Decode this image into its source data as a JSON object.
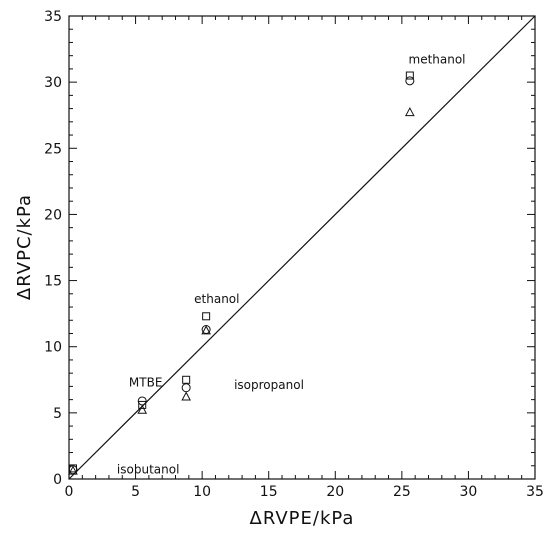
{
  "chart_data": {
    "type": "scatter",
    "title": "",
    "xlabel": "ΔRVPE/kPa",
    "ylabel": "ΔRVPC/kPa",
    "xlim": [
      0,
      35
    ],
    "ylim": [
      0,
      35
    ],
    "x_ticks": [
      0,
      5,
      10,
      15,
      20,
      25,
      30,
      35
    ],
    "y_ticks": [
      0,
      5,
      10,
      15,
      20,
      25,
      30,
      35
    ],
    "grid": false,
    "legend": "none",
    "reference_line": {
      "from": [
        0,
        0
      ],
      "to": [
        35,
        35
      ]
    },
    "series": [
      {
        "marker": "square",
        "points": [
          {
            "x": 0.3,
            "y": 0.8
          },
          {
            "x": 5.5,
            "y": 5.6
          },
          {
            "x": 8.8,
            "y": 7.5
          },
          {
            "x": 10.3,
            "y": 12.3
          },
          {
            "x": 25.6,
            "y": 30.5
          }
        ]
      },
      {
        "marker": "circle",
        "points": [
          {
            "x": 0.3,
            "y": 0.7
          },
          {
            "x": 5.5,
            "y": 5.9
          },
          {
            "x": 8.8,
            "y": 6.9
          },
          {
            "x": 10.3,
            "y": 11.3
          },
          {
            "x": 25.6,
            "y": 30.1
          }
        ]
      },
      {
        "marker": "triangle",
        "points": [
          {
            "x": 0.3,
            "y": 0.6
          },
          {
            "x": 5.5,
            "y": 5.2
          },
          {
            "x": 8.8,
            "y": 6.2
          },
          {
            "x": 10.3,
            "y": 11.2
          },
          {
            "x": 25.6,
            "y": 27.7
          }
        ]
      }
    ],
    "annotations": [
      {
        "text": "methanol",
        "x": 25.5,
        "y": 31.7
      },
      {
        "text": "ethanol",
        "x": 9.4,
        "y": 13.6
      },
      {
        "text": "MTBE",
        "x": 4.5,
        "y": 7.3
      },
      {
        "text": "isopropanol",
        "x": 12.4,
        "y": 7.1
      },
      {
        "text": "isobutanol",
        "x": 3.6,
        "y": 0.7
      }
    ]
  }
}
